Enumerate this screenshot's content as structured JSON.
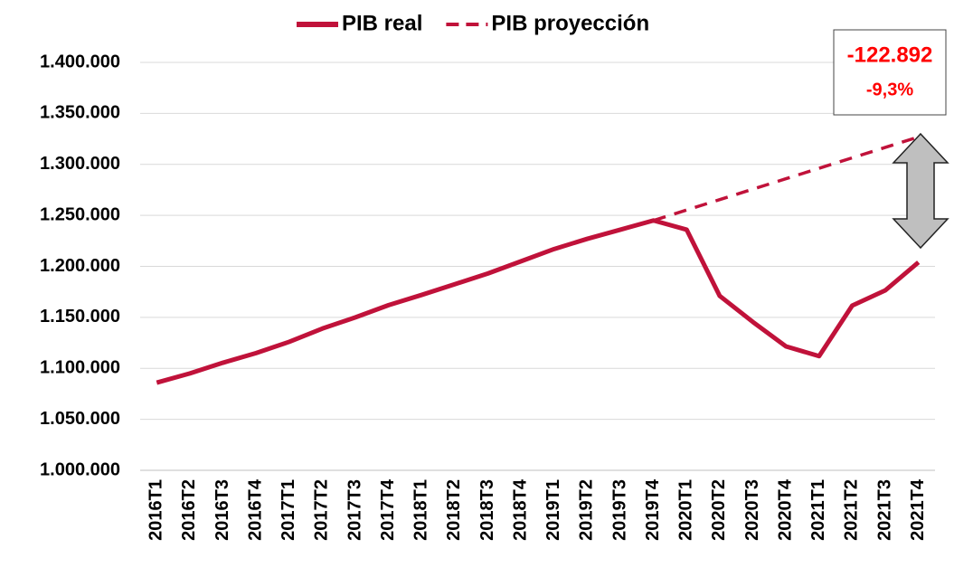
{
  "chart_data": {
    "type": "line",
    "categories": [
      "2016T1",
      "2016T2",
      "2016T3",
      "2016T4",
      "2017T1",
      "2017T2",
      "2017T3",
      "2017T4",
      "2018T1",
      "2018T2",
      "2018T3",
      "2018T4",
      "2019T1",
      "2019T2",
      "2019T3",
      "2019T4",
      "2020T1",
      "2020T2",
      "2020T3",
      "2020T4",
      "2021T1",
      "2021T2",
      "2021T3",
      "2021T4"
    ],
    "series": [
      {
        "name": "PIB real",
        "color": "#c0123a",
        "dashed": false,
        "values": [
          1086000,
          1095000,
          1105500,
          1115000,
          1126000,
          1139000,
          1150000,
          1162000,
          1172000,
          1182500,
          1193000,
          1205000,
          1217000,
          1227000,
          1236000,
          1245000,
          1236000,
          1171000,
          1145500,
          1121500,
          1112000,
          1161500,
          1176500,
          1204000
        ]
      },
      {
        "name": "PIB proyección",
        "color": "#c0123a",
        "dashed": true,
        "values": [
          null,
          null,
          null,
          null,
          null,
          null,
          null,
          null,
          null,
          null,
          null,
          null,
          null,
          null,
          null,
          1245000,
          1255237,
          1265473,
          1275710,
          1285946,
          1296183,
          1306419,
          1316656,
          1326892
        ]
      }
    ],
    "ylim": [
      1000000,
      1400000
    ],
    "yticks": [
      {
        "value": 1000000,
        "label": "1.000.000"
      },
      {
        "value": 1050000,
        "label": "1.050.000"
      },
      {
        "value": 1100000,
        "label": "1.100.000"
      },
      {
        "value": 1150000,
        "label": "1.150.000"
      },
      {
        "value": 1200000,
        "label": "1.200.000"
      },
      {
        "value": 1250000,
        "label": "1.250.000"
      },
      {
        "value": 1300000,
        "label": "1.300.000"
      },
      {
        "value": 1350000,
        "label": "1.350.000"
      },
      {
        "value": 1400000,
        "label": "1.400.000"
      }
    ],
    "grid": true,
    "legend": "top",
    "annotation": {
      "difference": "-122.892",
      "percent": "-9,3%"
    }
  }
}
